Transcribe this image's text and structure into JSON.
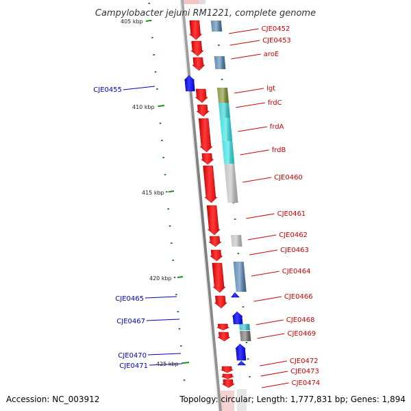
{
  "title": "Campylobacter jejuni RM1221, complete genome",
  "accession_text": "Accession: NC_003912",
  "topology_text": "Topology: circular; Length: 1,777,831 bp; Genes: 1,894",
  "colors": {
    "forward_gene": "#ee1111",
    "reverse_gene": "#1111ee",
    "forward_label": "#cc0000",
    "reverse_label": "#0000bb",
    "backbone": "#888888",
    "tick": "#228822"
  },
  "scale_labels": [
    "405 kbp",
    "410 kbp",
    "415 kbp",
    "420 kbp",
    "425 kbp"
  ],
  "genes_forward": [
    {
      "name": "CJE0452",
      "cog_color": "#4477aa"
    },
    {
      "name": "CJE0453",
      "cog_color": ""
    },
    {
      "name": "aroE",
      "cog_color": "#4477aa"
    },
    {
      "name": "lgt",
      "cog_color": "#778822"
    },
    {
      "name": "frdC",
      "cog_color": "#22cccc"
    },
    {
      "name": "frdA",
      "cog_color": "#22dddd"
    },
    {
      "name": "frdB",
      "cog_color": "#22dddd"
    },
    {
      "name": "CJE0460",
      "cog_color": "#bbbbbb"
    },
    {
      "name": "CJE0461",
      "cog_color": ""
    },
    {
      "name": "CJE0462",
      "cog_color": "#bbbbbb"
    },
    {
      "name": "CJE0463",
      "cog_color": ""
    },
    {
      "name": "CJE0464",
      "cog_color": "#4477aa"
    },
    {
      "name": "CJE0466",
      "cog_color": ""
    },
    {
      "name": "CJE0468",
      "cog_color": "#22bbcc"
    },
    {
      "name": "CJE0469",
      "cog_color": "#666666"
    },
    {
      "name": "CJE0472",
      "cog_color": ""
    },
    {
      "name": "CJE0473",
      "cog_color": ""
    },
    {
      "name": "CJE0474",
      "cog_color": ""
    }
  ],
  "genes_reverse": [
    {
      "name": "CJE0455"
    },
    {
      "name": "CJE0465"
    },
    {
      "name": "CJE0467"
    },
    {
      "name": "CJE0470"
    },
    {
      "name": "CJE0471"
    }
  ]
}
